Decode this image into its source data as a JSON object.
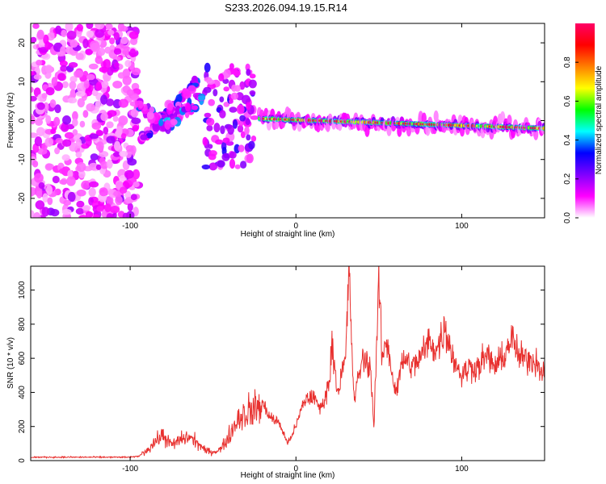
{
  "title": "S233.2026.094.19.15.R14",
  "chart_data": [
    {
      "type": "heatmap",
      "name": "spectrogram",
      "xlabel": "Height of straight line (km)",
      "ylabel": "Frequency (Hz)",
      "xlim": [
        -160,
        150
      ],
      "ylim": [
        -25,
        25
      ],
      "xticks": [
        -100,
        0,
        100
      ],
      "yticks": [
        -20,
        -10,
        0,
        10,
        20
      ],
      "colorbar": {
        "label": "Normalized spectral amplitude",
        "range": [
          0,
          1
        ],
        "ticks": [
          "0.0",
          "0.2",
          "0.4",
          "0.6",
          "0.8"
        ],
        "colors": [
          "#ffffff",
          "#ff00ff",
          "#7f00ff",
          "#0000ff",
          "#00ffff",
          "#00ff00",
          "#ffff00",
          "#ff7f00",
          "#ff0000",
          "#ff0066"
        ]
      },
      "features": [
        {
          "name": "scattered noise",
          "x_range": [
            -160,
            -95
          ],
          "freq_range": [
            -25,
            25
          ],
          "amplitude": 0.1
        },
        {
          "name": "rising branch",
          "x_range": [
            -95,
            -60
          ],
          "freq_range": [
            -6,
            10
          ],
          "amplitude": 0.3
        },
        {
          "name": "falling branch",
          "x_range": [
            -95,
            -55
          ],
          "freq_range": [
            -7,
            5
          ],
          "amplitude": 0.35
        },
        {
          "name": "late burst",
          "x_range": [
            -55,
            -25
          ],
          "freq_range": [
            -12,
            14
          ],
          "amplitude": 0.25
        },
        {
          "name": "steady tone",
          "x_range": [
            -22,
            150
          ],
          "freq_start": 0.5,
          "freq_end": -2,
          "amplitude": 0.95
        }
      ]
    },
    {
      "type": "line",
      "name": "snr",
      "xlabel": "Height of straight line (km)",
      "ylabel": "SNR (10 * v/v)",
      "xlim": [
        -160,
        150
      ],
      "ylim": [
        0,
        1140
      ],
      "xticks": [
        -100,
        0,
        100
      ],
      "yticks": [
        0,
        200,
        400,
        600,
        800,
        1000
      ],
      "line_color": "#e8302e",
      "series": [
        {
          "name": "SNR",
          "x": [
            -160,
            -140,
            -120,
            -100,
            -95,
            -90,
            -85,
            -80,
            -75,
            -70,
            -65,
            -60,
            -55,
            -50,
            -45,
            -40,
            -35,
            -30,
            -25,
            -20,
            -15,
            -10,
            -5,
            0,
            5,
            10,
            15,
            20,
            22,
            25,
            30,
            32,
            35,
            40,
            45,
            47,
            50,
            52,
            55,
            60,
            65,
            70,
            75,
            80,
            85,
            90,
            95,
            100,
            105,
            110,
            115,
            120,
            125,
            130,
            135,
            140,
            145,
            150
          ],
          "y": [
            20,
            20,
            20,
            20,
            25,
            60,
            110,
            150,
            90,
            120,
            140,
            110,
            60,
            50,
            70,
            150,
            250,
            280,
            300,
            330,
            250,
            220,
            100,
            200,
            350,
            380,
            300,
            450,
            700,
            400,
            600,
            1130,
            350,
            600,
            550,
            200,
            1050,
            600,
            700,
            400,
            600,
            550,
            600,
            700,
            650,
            780,
            600,
            500,
            550,
            550,
            620,
            550,
            600,
            720,
            600,
            600,
            580,
            520
          ]
        }
      ]
    }
  ]
}
